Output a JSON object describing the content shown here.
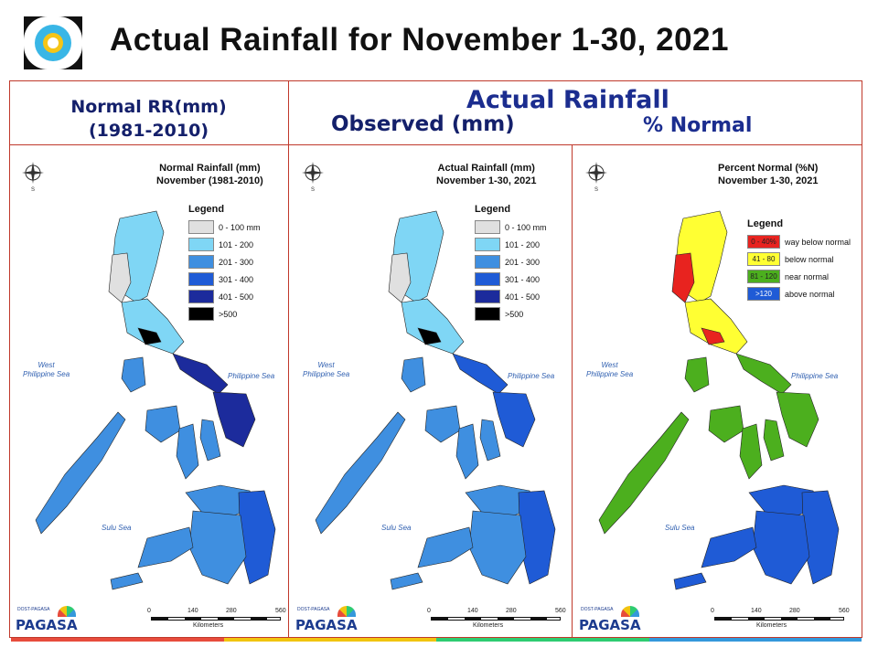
{
  "header": {
    "title": "Actual Rainfall for November 1-30, 2021"
  },
  "column_headers": {
    "normal_line1": "Normal RR(mm)",
    "normal_line2": "(1981-2010)",
    "actual": "Actual Rainfall",
    "observed": "Observed (mm)",
    "percent": "% Normal"
  },
  "panels": [
    {
      "title_line1": "Normal Rainfall (mm)",
      "title_line2": "November (1981-2010)",
      "legend_title": "Legend",
      "legend": [
        {
          "label": "0 - 100 mm",
          "color": "#e0e0e0"
        },
        {
          "label": "101 - 200",
          "color": "#7fd6f5"
        },
        {
          "label": "201 - 300",
          "color": "#3f8fe0"
        },
        {
          "label": "301 - 400",
          "color": "#1f5bd6"
        },
        {
          "label": "401 - 500",
          "color": "#1c2b9c"
        },
        {
          "label": ">500",
          "color": "#000000"
        }
      ],
      "sea_west_1": "West",
      "sea_west_2": "Philippine Sea",
      "sea_east": "Philippine Sea",
      "sea_sulu": "Sulu Sea",
      "scale_ticks": [
        "0",
        "140",
        "280",
        "560"
      ],
      "scale_unit": "Kilometers"
    },
    {
      "title_line1": "Actual Rainfall (mm)",
      "title_line2": "November 1-30, 2021",
      "legend_title": "Legend",
      "legend": [
        {
          "label": "0 - 100 mm",
          "color": "#e0e0e0"
        },
        {
          "label": "101 - 200",
          "color": "#7fd6f5"
        },
        {
          "label": "201 - 300",
          "color": "#3f8fe0"
        },
        {
          "label": "301 - 400",
          "color": "#1f5bd6"
        },
        {
          "label": "401 - 500",
          "color": "#1c2b9c"
        },
        {
          "label": ">500",
          "color": "#000000"
        }
      ],
      "sea_west_1": "West",
      "sea_west_2": "Philippine Sea",
      "sea_east": "Philippine Sea",
      "sea_sulu": "Sulu Sea",
      "scale_ticks": [
        "0",
        "140",
        "280",
        "560"
      ],
      "scale_unit": "Kilometers"
    },
    {
      "title_line1": "Percent Normal (%N)",
      "title_line2": "November 1-30, 2021",
      "legend_title": "Legend",
      "legend": [
        {
          "swatch": "0 - 40%",
          "label": "way below normal",
          "color": "#e8231f"
        },
        {
          "swatch": "41 - 80",
          "label": "below normal",
          "color": "#ffff33"
        },
        {
          "swatch": "81 - 120",
          "label": "near normal",
          "color": "#4caf1e"
        },
        {
          "swatch": ">120",
          "label": "above normal",
          "color": "#1f5bd6"
        }
      ],
      "sea_west_1": "West",
      "sea_west_2": "Philippine Sea",
      "sea_east": "Philippine Sea",
      "sea_sulu": "Sulu Sea",
      "scale_ticks": [
        "0",
        "140",
        "280",
        "560"
      ],
      "scale_unit": "Kilometers"
    }
  ],
  "branding": {
    "agency": "PAGASA",
    "agency_small": "DOST-PAGASA"
  },
  "colors": {
    "frame": "#c0392b",
    "title": "#111111",
    "header_blue": "#1b2d8f",
    "strip": [
      "#e74c3c",
      "#f1c40f",
      "#2ecc71",
      "#3498db"
    ]
  }
}
